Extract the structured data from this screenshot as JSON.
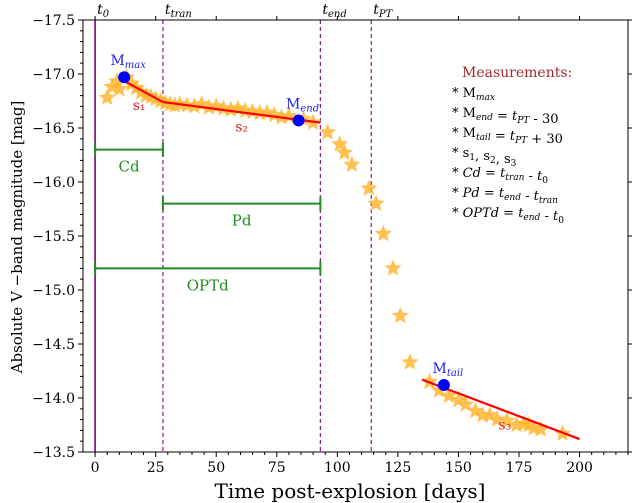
{
  "chart_data": {
    "type": "scatter",
    "xlabel": "Time post-explosion [days]",
    "ylabel": "Absolute V −band magnitude [mag]",
    "xlim": [
      -5,
      220
    ],
    "ylim": [
      -13.5,
      -17.5
    ],
    "y_inverted": true,
    "x_ticks": [
      0,
      25,
      50,
      75,
      100,
      125,
      150,
      175,
      200
    ],
    "y_ticks": [
      -13.5,
      -14.0,
      -14.5,
      -15.0,
      -15.5,
      -16.0,
      -16.5,
      -17.0,
      -17.5
    ],
    "x_tick_labels": [
      "0",
      "25",
      "50",
      "75",
      "100",
      "125",
      "150",
      "175",
      "200"
    ],
    "y_tick_labels": [
      "−13.5",
      "−14.0",
      "−14.5",
      "−15.0",
      "−15.5",
      "−16.0",
      "−16.5",
      "−17.0",
      "−17.5"
    ],
    "grid": false,
    "series": [
      {
        "marker": "star",
        "color": "#ffb732",
        "points": [
          [
            5,
            -16.78
          ],
          [
            7,
            -16.88
          ],
          [
            9,
            -16.93
          ],
          [
            10,
            -16.86
          ],
          [
            13,
            -16.97
          ],
          [
            15,
            -16.91
          ],
          [
            17,
            -16.87
          ],
          [
            19,
            -16.83
          ],
          [
            21,
            -16.8
          ],
          [
            23,
            -16.79
          ],
          [
            25,
            -16.77
          ],
          [
            27,
            -16.75
          ],
          [
            29,
            -16.73
          ],
          [
            31,
            -16.72
          ],
          [
            33,
            -16.71
          ],
          [
            35,
            -16.72
          ],
          [
            38,
            -16.71
          ],
          [
            41,
            -16.7
          ],
          [
            44,
            -16.72
          ],
          [
            47,
            -16.69
          ],
          [
            50,
            -16.7
          ],
          [
            53,
            -16.68
          ],
          [
            56,
            -16.67
          ],
          [
            59,
            -16.68
          ],
          [
            62,
            -16.66
          ],
          [
            65,
            -16.65
          ],
          [
            68,
            -16.64
          ],
          [
            71,
            -16.64
          ],
          [
            74,
            -16.62
          ],
          [
            77,
            -16.6
          ],
          [
            80,
            -16.61
          ],
          [
            86,
            -16.58
          ],
          [
            90,
            -16.55
          ],
          [
            96,
            -16.46
          ],
          [
            101,
            -16.35
          ],
          [
            103,
            -16.27
          ],
          [
            106,
            -16.16
          ],
          [
            113,
            -15.94
          ],
          [
            116,
            -15.8
          ],
          [
            119,
            -15.52
          ],
          [
            123,
            -15.2
          ],
          [
            126,
            -14.76
          ],
          [
            130,
            -14.33
          ],
          [
            138,
            -14.15
          ],
          [
            142,
            -14.07
          ],
          [
            146,
            -14.02
          ],
          [
            150,
            -13.98
          ],
          [
            153,
            -13.94
          ],
          [
            157,
            -13.88
          ],
          [
            160,
            -13.84
          ],
          [
            163,
            -13.84
          ],
          [
            166,
            -13.8
          ],
          [
            170,
            -13.79
          ],
          [
            174,
            -13.75
          ],
          [
            177,
            -13.76
          ],
          [
            179,
            -13.75
          ],
          [
            181,
            -13.72
          ],
          [
            184,
            -13.71
          ],
          [
            193,
            -13.67
          ]
        ]
      }
    ],
    "fits": [
      {
        "label": "s₁",
        "x": [
          10,
          28
        ],
        "y": [
          -16.96,
          -16.74
        ],
        "color": "#ff0000"
      },
      {
        "label": "s₂",
        "x": [
          28,
          93
        ],
        "y": [
          -16.74,
          -16.55
        ],
        "color": "#ff0000"
      },
      {
        "label": "s₃",
        "x": [
          135,
          200
        ],
        "y": [
          -14.17,
          -13.62
        ],
        "color": "#ff0000"
      }
    ],
    "key_points": [
      {
        "label": "M",
        "sub": "max",
        "x": 12,
        "y": -16.97
      },
      {
        "label": "M",
        "sub": "end",
        "x": 84,
        "y": -16.57
      },
      {
        "label": "M",
        "sub": "tail",
        "x": 144,
        "y": -14.12
      }
    ],
    "vlines": [
      {
        "label": "t",
        "sub": "0",
        "x": 0,
        "style": "solid",
        "color": "#8b1c8b"
      },
      {
        "label": "t",
        "sub": "tran",
        "x": 28,
        "style": "dashed",
        "color": "#8b1c8b"
      },
      {
        "label": "t",
        "sub": "end",
        "x": 93,
        "style": "dashed",
        "color": "#8b1c8b"
      },
      {
        "label": "t",
        "sub": "PT",
        "x": 114,
        "style": "dashed",
        "color": "#8b1c8b"
      }
    ],
    "durations": [
      {
        "label": "Cd",
        "x_start": 0,
        "x_end": 28,
        "y": -16.3,
        "color": "#228b22"
      },
      {
        "label": "Pd",
        "x_start": 28,
        "x_end": 93,
        "y": -15.8,
        "color": "#228b22"
      },
      {
        "label": "OPTd",
        "x_start": 0,
        "x_end": 93,
        "y": -15.2,
        "color": "#228b22"
      }
    ],
    "measurements_box": {
      "title": "Measurements:",
      "title_color": "#a52a2a",
      "items": [
        "* M_max",
        "* M_end = t_PT - 30",
        "* M_tail = t_PT + 30",
        "* s1, s2, s3",
        "* Cd = t_tran - t0",
        "* Pd = t_end - t_tran",
        "* OPTd = t_end - t0"
      ]
    },
    "colors": {
      "stars": "#ffb732",
      "fit_line": "#ff0000",
      "key_point": "#0000ff",
      "vline": "#8b1c8b",
      "duration": "#228b22",
      "label_blue": "#2222dd",
      "label_red": "#dd2222"
    }
  }
}
